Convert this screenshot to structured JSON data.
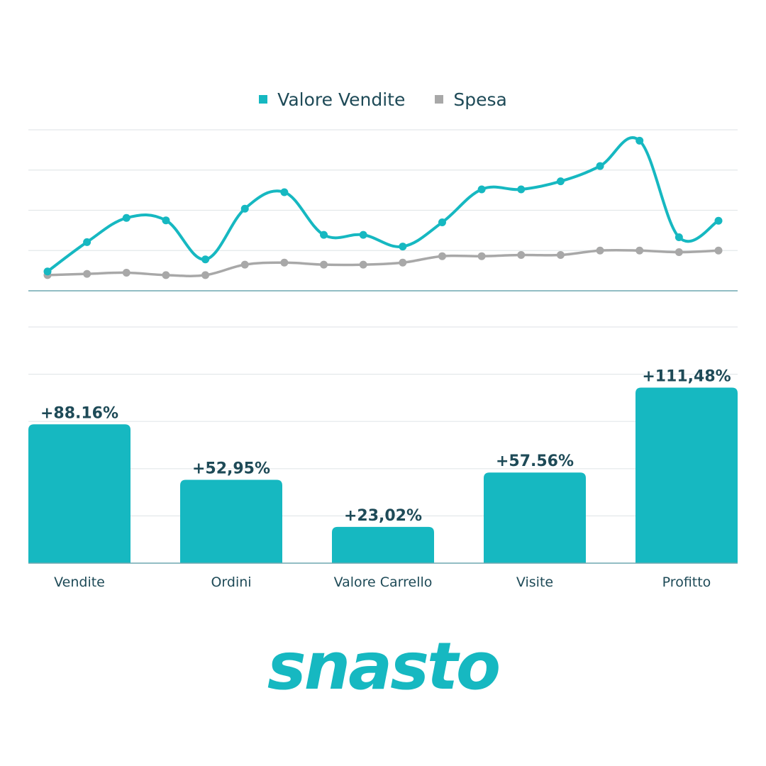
{
  "colors": {
    "accent": "#16b8c1",
    "gray": "#a8a8a8",
    "text": "#1e4a57",
    "grid": "#e3e8ea",
    "axis": "#6fa7b0"
  },
  "brand": {
    "name": "snasto"
  },
  "chart_data": [
    {
      "type": "line",
      "title": "",
      "xlabel": "",
      "ylabel": "",
      "legend": "top-center",
      "grid": true,
      "ylim": [
        0,
        4
      ],
      "x": [
        1,
        2,
        3,
        4,
        5,
        6,
        7,
        8,
        9,
        10,
        11,
        12,
        13,
        14,
        15,
        16,
        17,
        18
      ],
      "series": [
        {
          "name": "Valore Vendite",
          "color": "#16b8c1",
          "values": [
            0.48,
            1.21,
            1.81,
            1.75,
            0.78,
            2.04,
            2.45,
            1.39,
            1.39,
            1.1,
            1.7,
            2.52,
            2.52,
            2.72,
            3.1,
            3.73,
            1.33,
            1.74
          ]
        },
        {
          "name": "Spesa",
          "color": "#a8a8a8",
          "values": [
            0.39,
            0.42,
            0.45,
            0.39,
            0.39,
            0.65,
            0.7,
            0.65,
            0.65,
            0.7,
            0.86,
            0.86,
            0.89,
            0.89,
            1.0,
            1.0,
            0.96,
            1.0
          ]
        }
      ]
    },
    {
      "type": "bar",
      "title": "",
      "xlabel": "",
      "ylabel": "",
      "grid": true,
      "ylim": [
        0,
        150
      ],
      "categories": [
        "Vendite",
        "Ordini",
        "Valore Carrello",
        "Visite",
        "Profitto"
      ],
      "values": [
        88.16,
        52.95,
        23.02,
        57.56,
        111.48
      ],
      "labels": [
        "+88.16%",
        "+52,95%",
        "+23,02%",
        "+57.56%",
        "+111,48%"
      ]
    }
  ]
}
